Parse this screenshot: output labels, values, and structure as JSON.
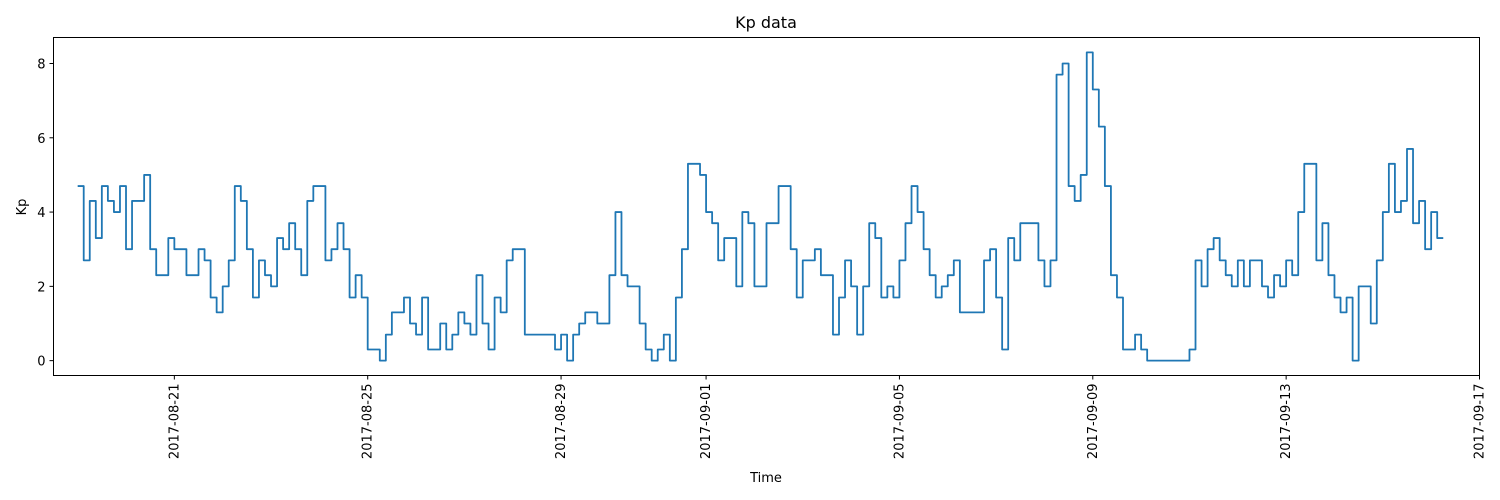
{
  "chart_data": {
    "type": "line",
    "title": "Kp data",
    "xlabel": "Time",
    "ylabel": "Kp",
    "x_ticks": [
      "2017-08-21",
      "2017-08-25",
      "2017-08-29",
      "2017-09-01",
      "2017-09-05",
      "2017-09-09",
      "2017-09-13",
      "2017-09-17"
    ],
    "y_ticks": [
      "0",
      "2",
      "4",
      "6",
      "8"
    ],
    "xlim": [
      "2017-08-18T12:00",
      "2017-09-17T00:00"
    ],
    "ylim": [
      -0.4,
      8.7
    ],
    "grid": false,
    "line_color": "#1f77b4",
    "drawstyle": "steps",
    "series": [
      {
        "x_start": "2017-08-19T00:00",
        "x_step_hours": 3,
        "values": [
          4.7,
          2.7,
          4.3,
          3.3,
          4.7,
          4.3,
          4.0,
          4.7,
          3.0,
          4.3,
          4.3,
          5.0,
          3.0,
          2.3,
          2.3,
          3.3,
          3.0,
          3.0,
          2.3,
          2.3,
          3.0,
          2.7,
          1.7,
          1.3,
          2.0,
          2.7,
          4.7,
          4.3,
          3.0,
          1.7,
          2.7,
          2.3,
          2.0,
          3.3,
          3.0,
          3.7,
          3.0,
          2.3,
          4.3,
          4.7,
          4.7,
          2.7,
          3.0,
          3.7,
          3.0,
          1.7,
          2.3,
          1.7,
          0.3,
          0.3,
          0.0,
          0.7,
          1.3,
          1.3,
          1.7,
          1.0,
          0.7,
          1.7,
          0.3,
          0.3,
          1.0,
          0.3,
          0.7,
          1.3,
          1.0,
          0.7,
          2.3,
          1.0,
          0.3,
          1.7,
          1.3,
          2.7,
          3.0,
          3.0,
          0.7,
          0.7,
          0.7,
          0.7,
          0.7,
          0.3,
          0.7,
          0.0,
          0.7,
          1.0,
          1.3,
          1.3,
          1.0,
          1.0,
          2.3,
          4.0,
          2.3,
          2.0,
          2.0,
          1.0,
          0.3,
          0.0,
          0.3,
          0.7,
          0.0,
          1.7,
          3.0,
          5.3,
          5.3,
          5.0,
          4.0,
          3.7,
          2.7,
          3.3,
          3.3,
          2.0,
          4.0,
          3.7,
          2.0,
          2.0,
          3.7,
          3.7,
          4.7,
          4.7,
          3.0,
          1.7,
          2.7,
          2.7,
          3.0,
          2.3,
          2.3,
          0.7,
          1.7,
          2.7,
          2.0,
          0.7,
          2.0,
          3.7,
          3.3,
          1.7,
          2.0,
          1.7,
          2.7,
          3.7,
          4.7,
          4.0,
          3.0,
          2.3,
          1.7,
          2.0,
          2.3,
          2.7,
          1.3,
          1.3,
          1.3,
          1.3,
          2.7,
          3.0,
          1.7,
          0.3,
          3.3,
          2.7,
          3.7,
          3.7,
          3.7,
          2.7,
          2.0,
          2.7,
          7.7,
          8.0,
          4.7,
          4.3,
          5.0,
          8.3,
          7.3,
          6.3,
          4.7,
          2.3,
          1.7,
          0.3,
          0.3,
          0.7,
          0.3,
          0.0,
          0.0,
          0.0,
          0.0,
          0.0,
          0.0,
          0.0,
          0.3,
          2.7,
          2.0,
          3.0,
          3.3,
          2.7,
          2.3,
          2.0,
          2.7,
          2.0,
          2.7,
          2.7,
          2.0,
          1.7,
          2.3,
          2.0,
          2.7,
          2.3,
          4.0,
          5.3,
          5.3,
          2.7,
          3.7,
          2.3,
          1.7,
          1.3,
          1.7,
          0.0,
          2.0,
          2.0,
          1.0,
          2.7,
          4.0,
          5.3,
          4.0,
          4.3,
          5.7,
          3.7,
          4.3,
          3.0,
          4.0,
          3.3
        ]
      }
    ]
  }
}
